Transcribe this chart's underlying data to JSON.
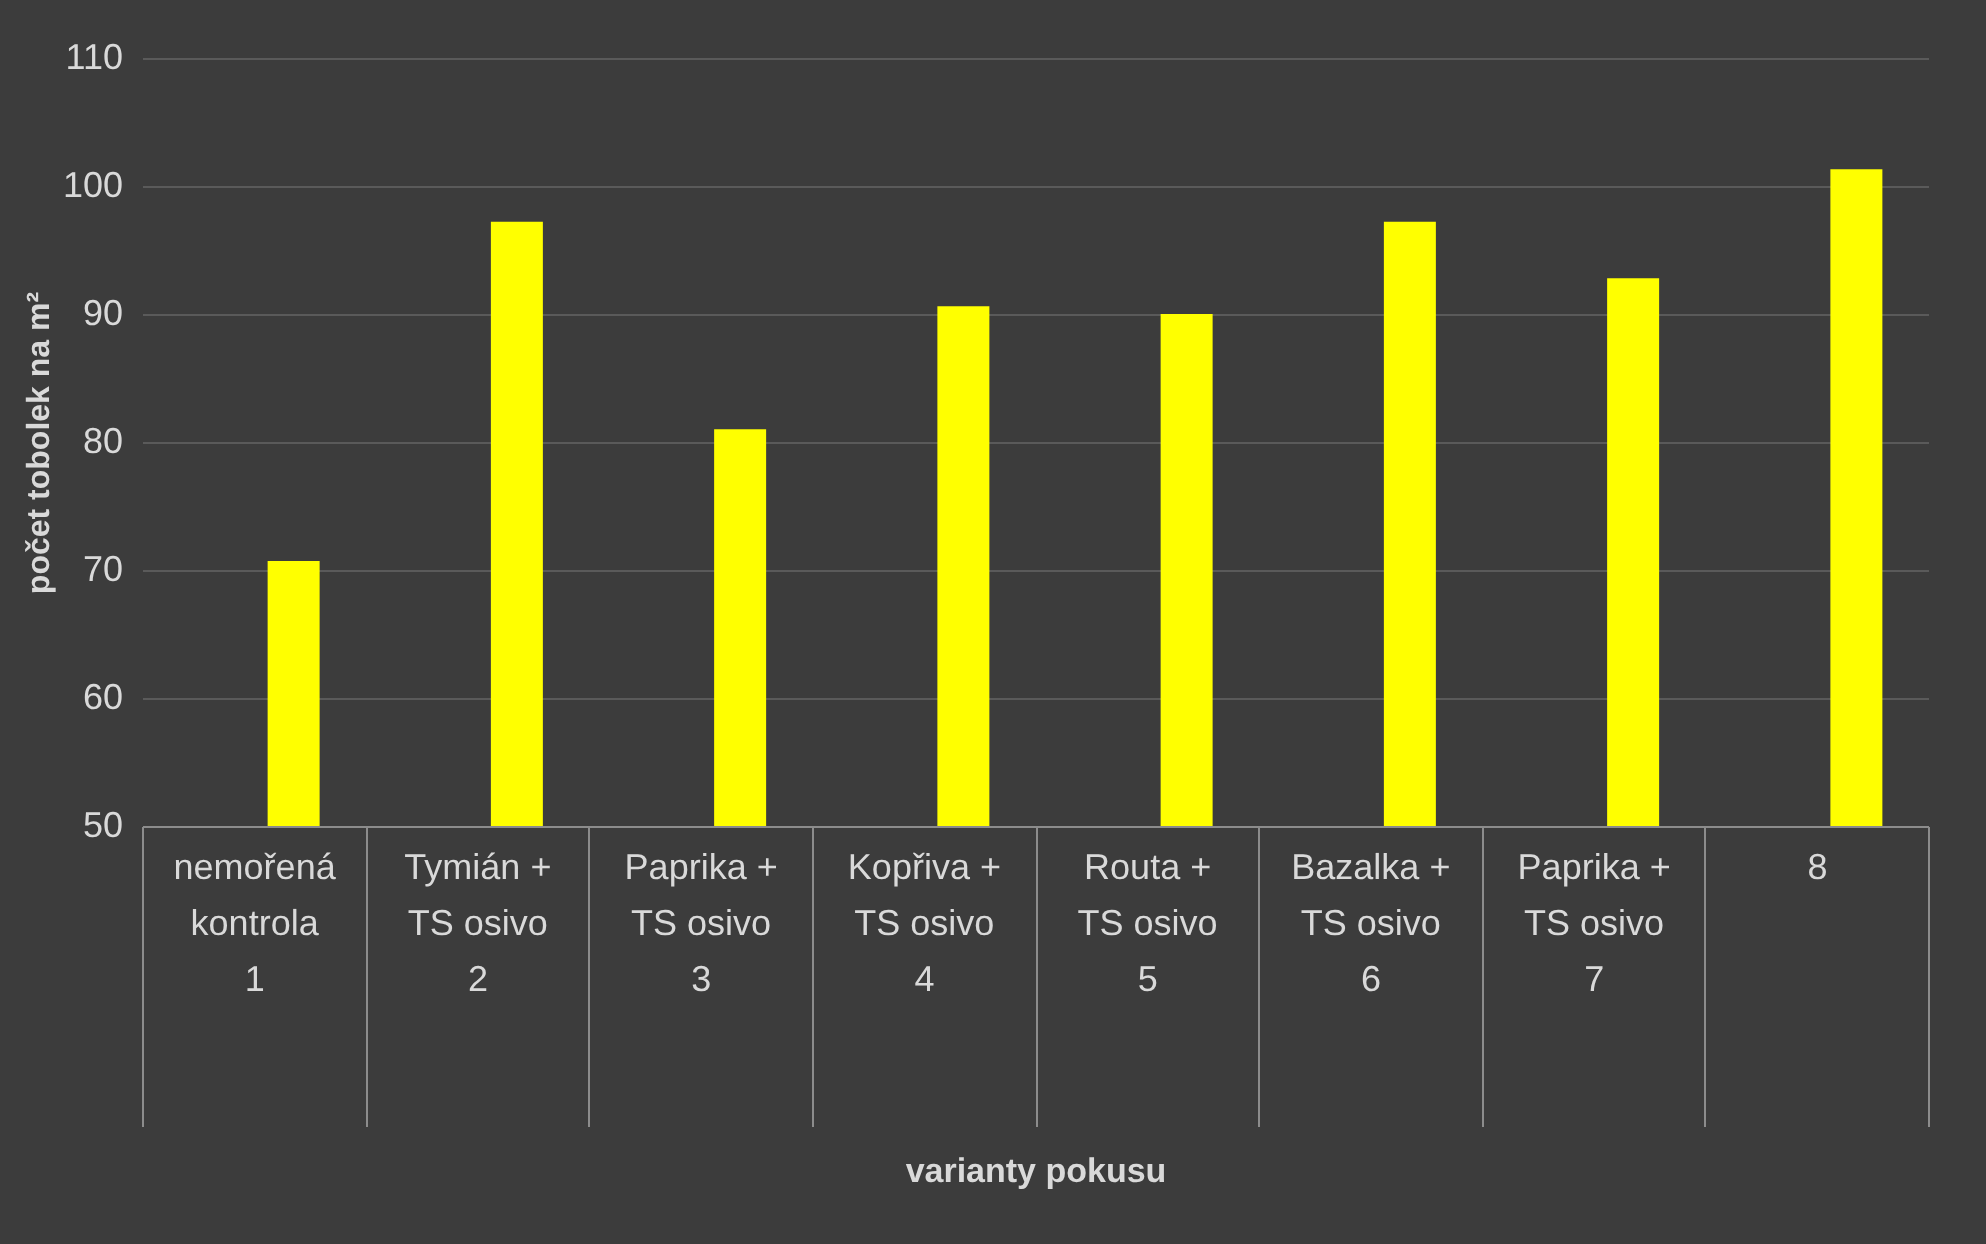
{
  "chart_data": {
    "type": "bar",
    "xlabel": "varianty pokusu",
    "ylabel": "počet tobolek na m²",
    "categories": [
      "nemořená\nkontrola\n\n1",
      "Tymián +\nTS osivo\n\n2",
      "Paprika +\nTS osivo\n\n3",
      "Kopřiva +\nTS osivo\n\n4",
      "Routa +\nTS osivo\n\n5",
      "Bazalka +\nTS osivo\n\n6",
      "Paprika +\nTS osivo\n\n7",
      "8"
    ],
    "values": [
      70.7,
      97.2,
      81,
      90.6,
      90,
      97.2,
      92.8,
      101.3
    ],
    "color": "#ffff00",
    "ylim": [
      50,
      110
    ],
    "yticks": [
      50,
      60,
      70,
      80,
      90,
      100,
      110
    ],
    "grid": "y"
  }
}
